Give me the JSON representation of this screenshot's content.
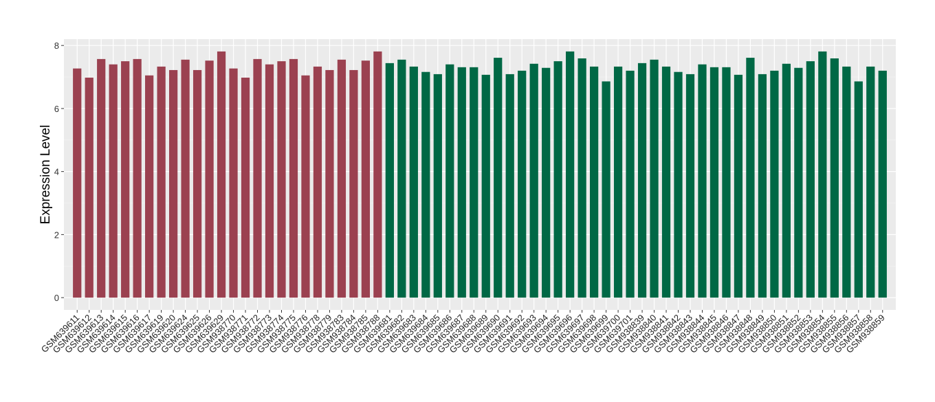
{
  "chart_data": {
    "type": "bar",
    "title": "",
    "xlabel": "",
    "ylabel": "Expression Level",
    "ylim": [
      -0.39,
      8.2
    ],
    "yticks": [
      0,
      2,
      4,
      6,
      8
    ],
    "grid": true,
    "legend": "none",
    "group_colors": [
      "#9b4150",
      "#006845"
    ],
    "categories": [
      "GSM639611",
      "GSM639612",
      "GSM639613",
      "GSM639614",
      "GSM639615",
      "GSM639616",
      "GSM639617",
      "GSM639619",
      "GSM639620",
      "GSM639624",
      "GSM639625",
      "GSM639626",
      "GSM639629",
      "GSM938770",
      "GSM938771",
      "GSM938772",
      "GSM938773",
      "GSM938774",
      "GSM938775",
      "GSM938776",
      "GSM938778",
      "GSM938779",
      "GSM938783",
      "GSM938784",
      "GSM938785",
      "GSM938788",
      "GSM639681",
      "GSM639682",
      "GSM639683",
      "GSM639684",
      "GSM639685",
      "GSM639686",
      "GSM639687",
      "GSM639688",
      "GSM639689",
      "GSM639690",
      "GSM639691",
      "GSM639692",
      "GSM639693",
      "GSM639694",
      "GSM639695",
      "GSM639696",
      "GSM639697",
      "GSM639698",
      "GSM639699",
      "GSM639700",
      "GSM639701",
      "GSM938839",
      "GSM938840",
      "GSM938841",
      "GSM938842",
      "GSM938843",
      "GSM938844",
      "GSM938845",
      "GSM938846",
      "GSM938847",
      "GSM938848",
      "GSM938849",
      "GSM938850",
      "GSM938851",
      "GSM938852",
      "GSM938853",
      "GSM938854",
      "GSM938855",
      "GSM938856",
      "GSM938857",
      "GSM938858",
      "GSM938859"
    ],
    "values": [
      7.27,
      6.98,
      7.57,
      7.4,
      7.5,
      7.57,
      7.05,
      7.33,
      7.22,
      7.55,
      7.22,
      7.52,
      7.81,
      7.27,
      6.98,
      7.57,
      7.4,
      7.5,
      7.57,
      7.05,
      7.33,
      7.22,
      7.55,
      7.22,
      7.52,
      7.81,
      7.44,
      7.55,
      7.33,
      7.16,
      7.09,
      7.4,
      7.31,
      7.31,
      7.07,
      7.61,
      7.09,
      7.2,
      7.42,
      7.29,
      7.5,
      7.81,
      7.59,
      7.33,
      6.86,
      7.33,
      7.2,
      7.44,
      7.55,
      7.33,
      7.16,
      7.09,
      7.4,
      7.31,
      7.31,
      7.07,
      7.61,
      7.09,
      7.2,
      7.42,
      7.29,
      7.5,
      7.81,
      7.59,
      7.33,
      6.86,
      7.33,
      7.2
    ],
    "groups": [
      0,
      0,
      0,
      0,
      0,
      0,
      0,
      0,
      0,
      0,
      0,
      0,
      0,
      0,
      0,
      0,
      0,
      0,
      0,
      0,
      0,
      0,
      0,
      0,
      0,
      0,
      1,
      1,
      1,
      1,
      1,
      1,
      1,
      1,
      1,
      1,
      1,
      1,
      1,
      1,
      1,
      1,
      1,
      1,
      1,
      1,
      1,
      1,
      1,
      1,
      1,
      1,
      1,
      1,
      1,
      1,
      1,
      1,
      1,
      1,
      1,
      1,
      1,
      1,
      1,
      1,
      1,
      1
    ]
  }
}
